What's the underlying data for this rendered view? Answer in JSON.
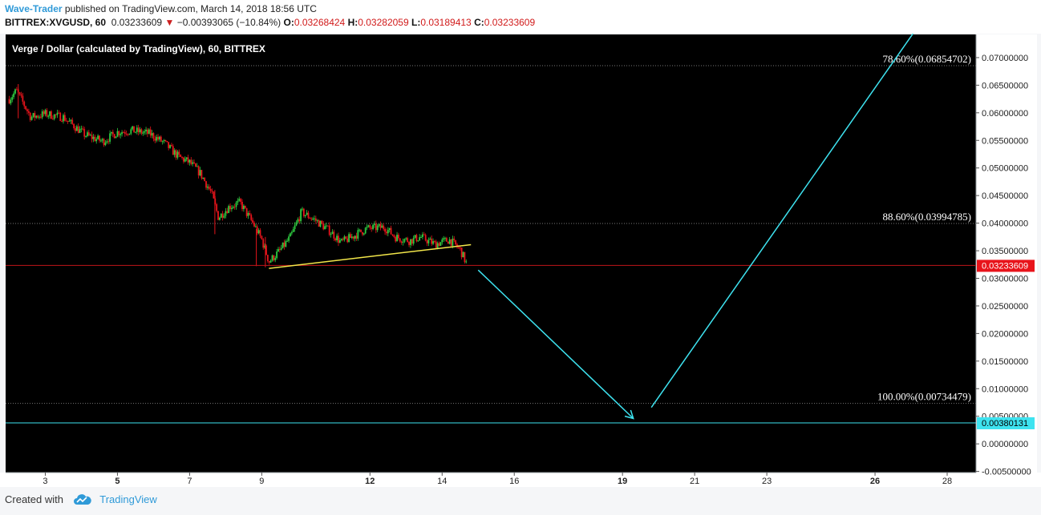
{
  "header": {
    "author": "Wave-Trader",
    "published_text": " published on TradingView.com, March 14, 2018 18:56 UTC",
    "symbol": "BITTREX:XVGUSD, 60",
    "last": "0.03233609",
    "arrow": "▼",
    "change": "−0.00393065 (−10.84%)",
    "o_label": "O:",
    "o_value": "0.03268424",
    "h_label": "H:",
    "h_value": "0.03282059",
    "l_label": "L:",
    "l_value": "0.03189413",
    "c_label": "C:",
    "c_value": "0.03233609"
  },
  "colors": {
    "background": "#000000",
    "up_candle": "#2ecc40",
    "down_candle": "#e8141b",
    "trendline": "#f3e74a",
    "projection": "#3ee3f0",
    "fib_line": "#777777",
    "price_badge": "#e8141b",
    "target_badge": "#3ee3f0"
  },
  "footer": {
    "created_with": "Created with",
    "brand": "TradingView"
  },
  "chart_data": {
    "type": "candlestick",
    "title": "Verge / Dollar (calculated by TradingView), 60, BITTREX",
    "x_ticks": [
      {
        "label": "3",
        "day": 3,
        "bold": false
      },
      {
        "label": "5",
        "day": 5,
        "bold": true
      },
      {
        "label": "7",
        "day": 7,
        "bold": false
      },
      {
        "label": "9",
        "day": 9,
        "bold": false
      },
      {
        "label": "12",
        "day": 12,
        "bold": true
      },
      {
        "label": "14",
        "day": 14,
        "bold": false
      },
      {
        "label": "16",
        "day": 16,
        "bold": false
      },
      {
        "label": "19",
        "day": 19,
        "bold": true
      },
      {
        "label": "21",
        "day": 21,
        "bold": false
      },
      {
        "label": "23",
        "day": 23,
        "bold": false
      },
      {
        "label": "26",
        "day": 26,
        "bold": true
      },
      {
        "label": "28",
        "day": 28,
        "bold": false
      }
    ],
    "xlim_days": [
      1.9,
      28.8
    ],
    "ylim": [
      -0.0052,
      0.0742
    ],
    "y_ticks": [
      "0.07000000",
      "0.06500000",
      "0.06000000",
      "0.05500000",
      "0.05000000",
      "0.04500000",
      "0.04000000",
      "0.03500000",
      "0.03000000",
      "0.02500000",
      "0.02000000",
      "0.01500000",
      "0.01000000",
      "0.00500000",
      "0.00000000",
      "-0.00500000"
    ],
    "y_tick_values": [
      0.07,
      0.065,
      0.06,
      0.055,
      0.05,
      0.045,
      0.04,
      0.035,
      0.03,
      0.025,
      0.02,
      0.015,
      0.01,
      0.005,
      0.0,
      -0.005
    ],
    "price_path": [
      {
        "day": 2.0,
        "price": 0.0625
      },
      {
        "day": 2.2,
        "price": 0.064
      },
      {
        "day": 2.6,
        "price": 0.0592
      },
      {
        "day": 3.0,
        "price": 0.0598
      },
      {
        "day": 3.5,
        "price": 0.0592
      },
      {
        "day": 4.1,
        "price": 0.056
      },
      {
        "day": 4.6,
        "price": 0.0548
      },
      {
        "day": 5.0,
        "price": 0.0565
      },
      {
        "day": 5.4,
        "price": 0.0568
      },
      {
        "day": 5.9,
        "price": 0.0562
      },
      {
        "day": 6.3,
        "price": 0.0545
      },
      {
        "day": 6.7,
        "price": 0.052
      },
      {
        "day": 7.0,
        "price": 0.051
      },
      {
        "day": 7.3,
        "price": 0.049
      },
      {
        "day": 7.6,
        "price": 0.0455
      },
      {
        "day": 7.8,
        "price": 0.041
      },
      {
        "day": 8.1,
        "price": 0.043
      },
      {
        "day": 8.4,
        "price": 0.0437
      },
      {
        "day": 8.8,
        "price": 0.0395
      },
      {
        "day": 9.0,
        "price": 0.037
      },
      {
        "day": 9.2,
        "price": 0.033
      },
      {
        "day": 9.5,
        "price": 0.035
      },
      {
        "day": 9.8,
        "price": 0.0375
      },
      {
        "day": 10.1,
        "price": 0.042
      },
      {
        "day": 10.5,
        "price": 0.0405
      },
      {
        "day": 10.9,
        "price": 0.0385
      },
      {
        "day": 11.2,
        "price": 0.0365
      },
      {
        "day": 11.5,
        "price": 0.0375
      },
      {
        "day": 11.9,
        "price": 0.039
      },
      {
        "day": 12.4,
        "price": 0.0393
      },
      {
        "day": 12.7,
        "price": 0.0375
      },
      {
        "day": 13.1,
        "price": 0.0368
      },
      {
        "day": 13.4,
        "price": 0.0375
      },
      {
        "day": 13.8,
        "price": 0.0362
      },
      {
        "day": 14.2,
        "price": 0.037
      },
      {
        "day": 14.5,
        "price": 0.0352
      },
      {
        "day": 14.7,
        "price": 0.0323
      }
    ],
    "wicks": [
      {
        "day": 2.25,
        "low": 0.059,
        "high": 0.0652
      },
      {
        "day": 7.7,
        "low": 0.038,
        "high": 0.046
      },
      {
        "day": 8.85,
        "low": 0.0322,
        "high": 0.039
      },
      {
        "day": 9.1,
        "low": 0.032,
        "high": 0.0375
      }
    ],
    "fib_levels": [
      {
        "label": "78.60%(0.06854702)",
        "value": 0.06854702
      },
      {
        "label": "88.60%(0.03994785)",
        "value": 0.03994785
      },
      {
        "label": "100.00%(0.00734479)",
        "value": 0.00734479
      }
    ],
    "current_price": {
      "label": "0.03233609",
      "value": 0.03233609
    },
    "target_price": {
      "label": "0.00380131",
      "value": 0.00380131
    },
    "trendline": {
      "start": {
        "day": 9.2,
        "price": 0.0318
      },
      "end": {
        "day": 14.8,
        "price": 0.0361
      }
    },
    "projection_down": {
      "start": {
        "day": 15.0,
        "price": 0.0315
      },
      "end": {
        "day": 19.3,
        "price": 0.0046
      }
    },
    "projection_up": {
      "start": {
        "day": 19.8,
        "price": 0.0066
      },
      "end": {
        "day": 27.1,
        "price": 0.0748
      }
    }
  }
}
